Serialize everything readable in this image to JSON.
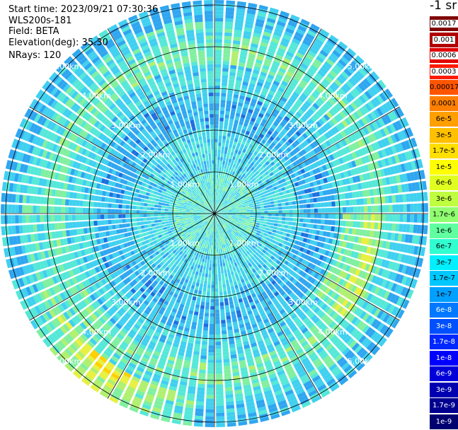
{
  "header": {
    "start_time": "Start time: 2023/09/21 07:30:36",
    "device": "WLS200s-181",
    "field": "Field: BETA",
    "elevation": "Elevation(deg): 35.30",
    "nrays": "NRays: 120"
  },
  "unit_label": "-1 sr",
  "colorbar": {
    "labels": [
      "0.0017",
      "0.001",
      "0.0006",
      "0.0003",
      "0.00017",
      "0.0001",
      "6e-5",
      "3e-5",
      "1.7e-5",
      "1e-5",
      "6e-6",
      "3e-6",
      "1.7e-6",
      "1e-6",
      "6e-7",
      "3e-7",
      "1.7e-7",
      "1e-7",
      "6e-8",
      "3e-8",
      "1.7e-8",
      "1e-8",
      "6e-9",
      "3e-9",
      "1.7e-9",
      "1e-9"
    ],
    "colors": [
      "#7f0000",
      "#b00000",
      "#e00000",
      "#ff1a00",
      "#ff5500",
      "#ff7f00",
      "#ffa000",
      "#ffc000",
      "#ffdf00",
      "#ffff00",
      "#e0ff20",
      "#c0ff40",
      "#90ff70",
      "#60ffa0",
      "#30ffd0",
      "#00f0ff",
      "#00c8ff",
      "#00a0ff",
      "#0078ff",
      "#0050ff",
      "#0028ff",
      "#0000ff",
      "#0000d8",
      "#0000b0",
      "#000090",
      "#000070"
    ]
  },
  "range_labels": [
    "1.00km",
    "2.00km",
    "3.00km",
    "4.00km",
    "5.00km"
  ],
  "map_palette": [
    "#1e6fe0",
    "#2fa6f0",
    "#40d0f0",
    "#55e8d8",
    "#80f0a0",
    "#b0f070",
    "#e8f040",
    "#ffd000",
    "#ff9000"
  ]
}
